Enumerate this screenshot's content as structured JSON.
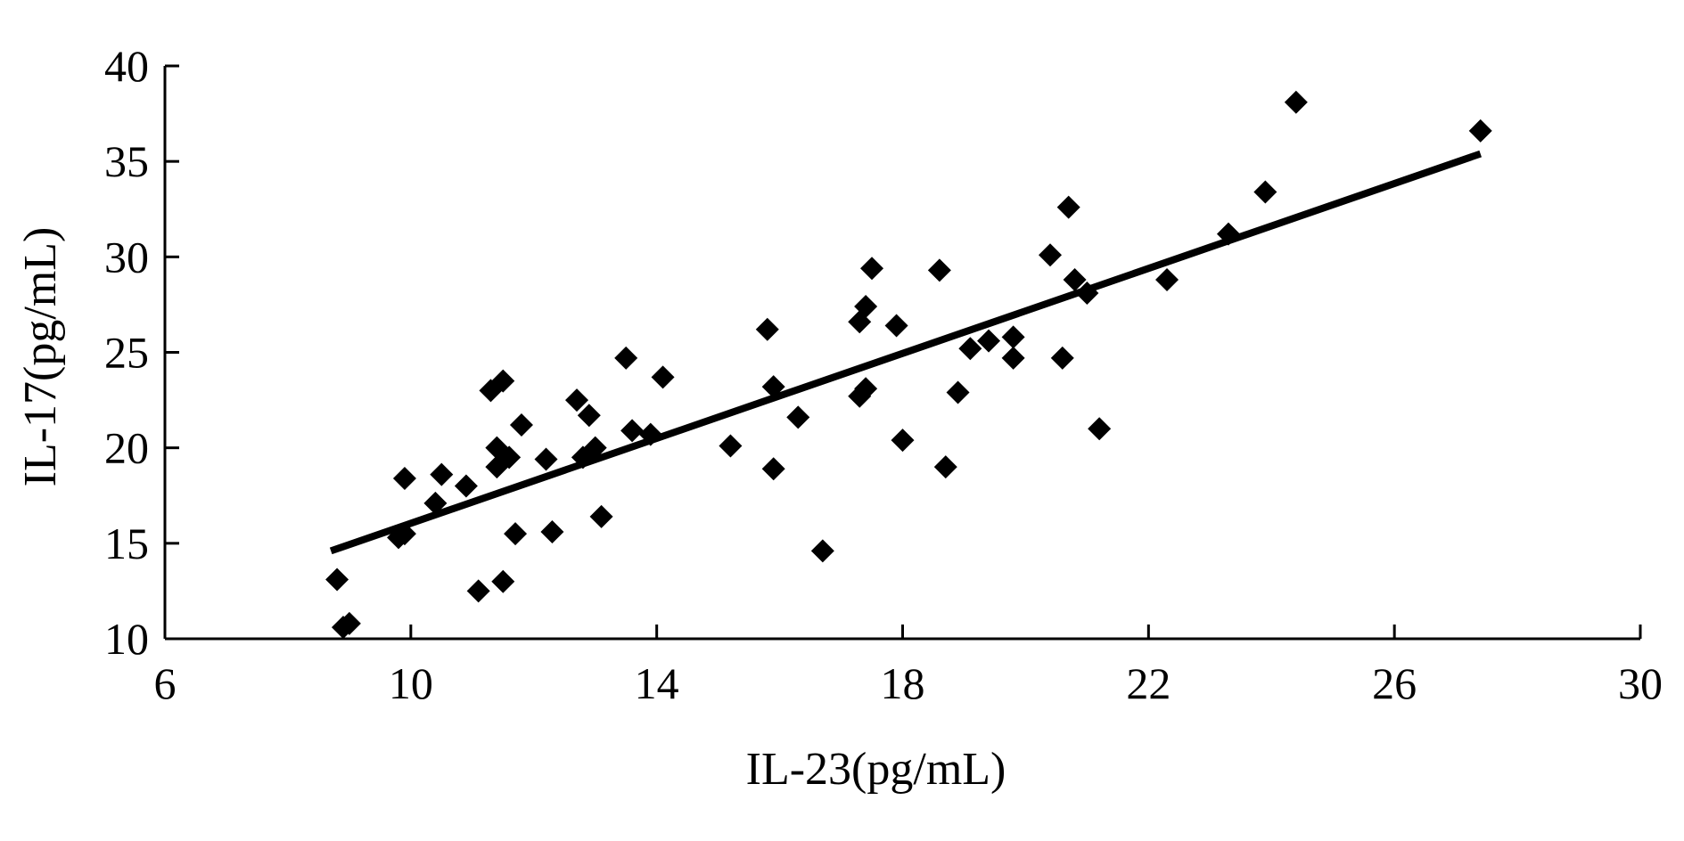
{
  "chart_data": {
    "type": "scatter",
    "xlabel": "IL-23(pg/mL)",
    "ylabel": "IL-17(pg/mL)",
    "xlim": [
      6,
      30
    ],
    "ylim": [
      10,
      40
    ],
    "x_ticks": [
      "6",
      "10",
      "14",
      "18",
      "22",
      "26",
      "30"
    ],
    "y_ticks": [
      "10",
      "15",
      "20",
      "25",
      "30",
      "35",
      "40"
    ],
    "marker": "diamond",
    "color": "#000000",
    "grid": false,
    "points": [
      [
        8.8,
        13.1
      ],
      [
        8.9,
        10.6
      ],
      [
        9.0,
        10.8
      ],
      [
        9.8,
        15.3
      ],
      [
        9.9,
        18.4
      ],
      [
        9.9,
        15.5
      ],
      [
        10.4,
        17.1
      ],
      [
        10.5,
        18.6
      ],
      [
        10.9,
        18.0
      ],
      [
        11.1,
        12.5
      ],
      [
        11.3,
        23.0
      ],
      [
        11.4,
        20.0
      ],
      [
        11.4,
        19.0
      ],
      [
        11.5,
        23.5
      ],
      [
        11.5,
        13.0
      ],
      [
        11.6,
        19.5
      ],
      [
        11.7,
        15.5
      ],
      [
        11.8,
        21.2
      ],
      [
        12.2,
        19.4
      ],
      [
        12.3,
        15.6
      ],
      [
        12.7,
        22.5
      ],
      [
        12.8,
        19.5
      ],
      [
        12.9,
        21.7
      ],
      [
        13.0,
        20.0
      ],
      [
        13.1,
        16.4
      ],
      [
        13.5,
        24.7
      ],
      [
        13.6,
        20.9
      ],
      [
        13.9,
        20.7
      ],
      [
        14.1,
        23.7
      ],
      [
        15.2,
        20.1
      ],
      [
        15.8,
        26.2
      ],
      [
        15.9,
        23.2
      ],
      [
        15.9,
        18.9
      ],
      [
        16.3,
        21.6
      ],
      [
        16.7,
        14.6
      ],
      [
        17.3,
        26.6
      ],
      [
        17.3,
        22.7
      ],
      [
        17.4,
        23.1
      ],
      [
        17.4,
        27.4
      ],
      [
        17.5,
        29.4
      ],
      [
        17.9,
        26.4
      ],
      [
        18.0,
        20.4
      ],
      [
        18.6,
        29.3
      ],
      [
        18.7,
        19.0
      ],
      [
        18.9,
        22.9
      ],
      [
        19.1,
        25.2
      ],
      [
        19.4,
        25.6
      ],
      [
        19.8,
        24.7
      ],
      [
        19.8,
        25.8
      ],
      [
        20.4,
        30.1
      ],
      [
        20.6,
        24.7
      ],
      [
        20.7,
        32.6
      ],
      [
        20.8,
        28.8
      ],
      [
        21.0,
        28.1
      ],
      [
        21.2,
        21.0
      ],
      [
        22.3,
        28.8
      ],
      [
        23.3,
        31.2
      ],
      [
        23.9,
        33.4
      ],
      [
        24.4,
        38.1
      ],
      [
        27.4,
        36.6
      ]
    ],
    "trendline": {
      "x": [
        8.7,
        27.4
      ],
      "y": [
        14.6,
        35.4
      ]
    }
  }
}
